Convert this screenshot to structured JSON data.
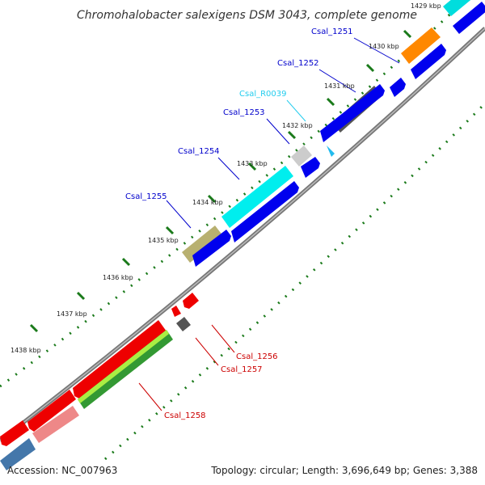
{
  "title": "Chromohalobacter salexigens DSM 3043, complete genome",
  "footer": {
    "accession": "Accession: NC_007963",
    "summary": "Topology: circular; Length: 3,696,649 bp; Genes: 3,388"
  },
  "scale_labels": [
    "1429 kbp",
    "1430 kbp",
    "1431 kbp",
    "1432 kbp",
    "1433 kbp",
    "1434 kbp",
    "1435 kbp",
    "1436 kbp",
    "1437 kbp",
    "1438 kbp"
  ],
  "genes": [
    {
      "name": "Csal_1251",
      "color": "#0000cc"
    },
    {
      "name": "Csal_1252",
      "color": "#0000cc"
    },
    {
      "name": "Csal_R0039",
      "color": "#22ccee"
    },
    {
      "name": "Csal_1253",
      "color": "#0000cc"
    },
    {
      "name": "Csal_1254",
      "color": "#0000cc"
    },
    {
      "name": "Csal_1255",
      "color": "#0000cc"
    },
    {
      "name": "Csal_1256",
      "color": "#cc0000"
    },
    {
      "name": "Csal_1257",
      "color": "#cc0000"
    },
    {
      "name": "Csal_1258",
      "color": "#cc0000"
    }
  ],
  "colors": {
    "forward_cds": "#0000ee",
    "reverse_cds": "#ee0000",
    "backbone": "#888888",
    "scale_ticks": "#1a7a1a"
  }
}
